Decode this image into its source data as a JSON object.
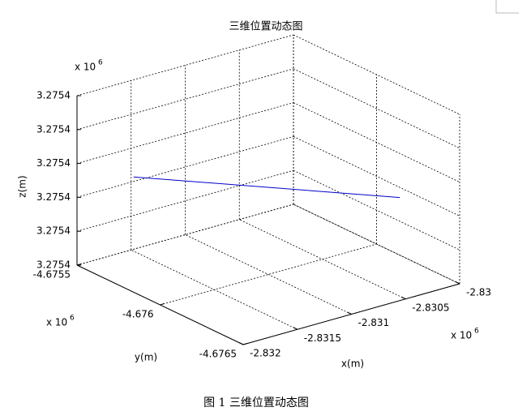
{
  "chart_data": {
    "type": "line3d",
    "title": "三维位置动态图",
    "caption": "图 1  三维位置动态图",
    "xlabel": "x(m)",
    "ylabel": "y(m)",
    "zlabel": "z(m)",
    "x_exponent": {
      "base": "x 10",
      "power": "6"
    },
    "y_exponent": {
      "base": "x 10",
      "power": "6"
    },
    "z_exponent": {
      "base": "x 10",
      "power": "6"
    },
    "xlim": [
      -2832000,
      -2830000
    ],
    "ylim": [
      -4676500,
      -4675500
    ],
    "zlim": [
      3275400,
      3275410
    ],
    "xticks": [
      {
        "value": -2832000,
        "label": "-2.832"
      },
      {
        "value": -2831500,
        "label": "-2.8315"
      },
      {
        "value": -2831000,
        "label": "-2.831"
      },
      {
        "value": -2830500,
        "label": "-2.8305"
      },
      {
        "value": -2830000,
        "label": "-2.83"
      }
    ],
    "yticks": [
      {
        "value": -4676500,
        "label": "-4.6765"
      },
      {
        "value": -4676000,
        "label": "-4.676"
      },
      {
        "value": -4675500,
        "label": "-4.6755"
      }
    ],
    "zticks": [
      {
        "value": 3275400,
        "label": "3.2754"
      },
      {
        "value": 3275402,
        "label": "3.2754"
      },
      {
        "value": 3275404,
        "label": "3.2754"
      },
      {
        "value": 3275406,
        "label": "3.2754"
      },
      {
        "value": 3275408,
        "label": "3.2754"
      },
      {
        "value": 3275410,
        "label": "3.2754"
      }
    ],
    "grid": true,
    "series": [
      {
        "color": "#0000c8",
        "x": [
          -2832000,
          -2830000
        ],
        "y": [
          -4675840,
          -4676140
        ],
        "values": [
          3275406.8,
          3275403.4
        ]
      }
    ]
  }
}
